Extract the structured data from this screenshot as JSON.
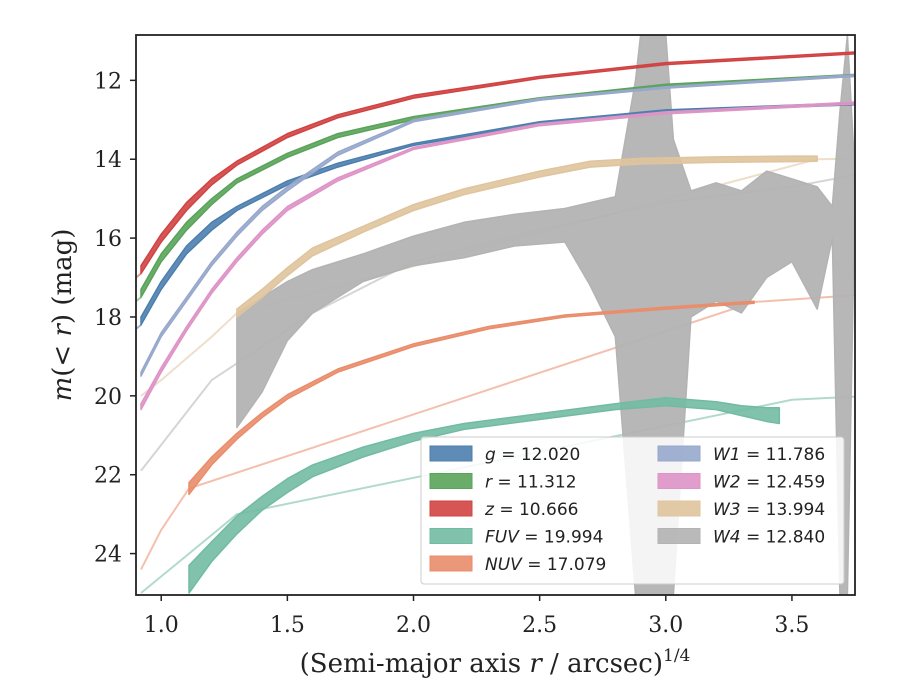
{
  "chart_data": {
    "type": "area",
    "xlabel_main": "(Semi-major axis ",
    "xlabel_var": "r",
    "xlabel_unit": " / arcsec)",
    "xlabel_exp": "1/4",
    "ylabel_pre": "m(< ",
    "ylabel_var": "r",
    "ylabel_post": ") (mag)",
    "xlim": [
      0.9,
      3.75
    ],
    "ylim": [
      25.05,
      10.85
    ],
    "y_inverted": true,
    "grid": false,
    "legend_position": "lower-right",
    "xticks": [
      1.0,
      1.5,
      2.0,
      2.5,
      3.0,
      3.5
    ],
    "xtick_labels": [
      "1.0",
      "1.5",
      "2.0",
      "2.5",
      "3.0",
      "3.5"
    ],
    "yticks": [
      12,
      14,
      16,
      18,
      20,
      22,
      24
    ],
    "ytick_labels": [
      "12",
      "14",
      "16",
      "18",
      "20",
      "22",
      "24"
    ],
    "series": [
      {
        "name": "g = 12.020",
        "name_var": "g",
        "name_val": " = 12.020",
        "color": "#4c7fae",
        "legend_col": 0,
        "band": [
          [
            0.92,
            18.2,
            18.0
          ],
          [
            1.0,
            17.3,
            17.1
          ],
          [
            1.1,
            16.4,
            16.2
          ],
          [
            1.2,
            15.8,
            15.6
          ],
          [
            1.3,
            15.3,
            15.2
          ],
          [
            1.5,
            14.65,
            14.55
          ],
          [
            1.7,
            14.2,
            14.1
          ],
          [
            2.0,
            13.65,
            13.6
          ],
          [
            2.5,
            13.1,
            13.05
          ],
          [
            3.0,
            12.8,
            12.75
          ],
          [
            3.75,
            12.62,
            12.57
          ]
        ],
        "tail": [
          [
            0.92,
            18.2
          ],
          [
            0.9,
            18.3
          ]
        ]
      },
      {
        "name": "r = 11.312",
        "name_var": "r",
        "name_val": " = 11.312",
        "color": "#5aa35a",
        "legend_col": 0,
        "band": [
          [
            0.92,
            17.5,
            17.3
          ],
          [
            1.0,
            16.6,
            16.4
          ],
          [
            1.1,
            15.8,
            15.6
          ],
          [
            1.2,
            15.15,
            15.0
          ],
          [
            1.3,
            14.6,
            14.5
          ],
          [
            1.5,
            13.95,
            13.85
          ],
          [
            1.7,
            13.45,
            13.35
          ],
          [
            2.0,
            13.0,
            12.92
          ],
          [
            2.5,
            12.5,
            12.44
          ],
          [
            3.0,
            12.15,
            12.1
          ],
          [
            3.75,
            11.9,
            11.85
          ]
        ],
        "tail": [
          [
            0.92,
            17.5
          ],
          [
            0.9,
            17.6
          ]
        ]
      },
      {
        "name": "z = 10.666",
        "name_var": "z",
        "name_val": " = 10.666",
        "color": "#d14343",
        "legend_col": 0,
        "band": [
          [
            0.92,
            16.9,
            16.7
          ],
          [
            1.0,
            16.1,
            15.9
          ],
          [
            1.1,
            15.3,
            15.1
          ],
          [
            1.2,
            14.65,
            14.5
          ],
          [
            1.3,
            14.15,
            14.05
          ],
          [
            1.5,
            13.45,
            13.35
          ],
          [
            1.7,
            12.95,
            12.87
          ],
          [
            2.0,
            12.45,
            12.38
          ],
          [
            2.5,
            11.95,
            11.9
          ],
          [
            3.0,
            11.6,
            11.55
          ],
          [
            3.75,
            11.33,
            11.28
          ]
        ],
        "tail": [
          [
            0.92,
            16.9
          ],
          [
            0.9,
            17.0
          ]
        ]
      },
      {
        "name": "FUV = 19.994",
        "name_var": "FUV",
        "name_val": " = 19.994",
        "color": "#72bba3",
        "legend_col": 0,
        "band": [
          [
            1.11,
            25.0,
            24.3
          ],
          [
            1.2,
            24.2,
            23.7
          ],
          [
            1.3,
            23.5,
            23.05
          ],
          [
            1.4,
            22.9,
            22.55
          ],
          [
            1.5,
            22.45,
            22.1
          ],
          [
            1.6,
            22.05,
            21.75
          ],
          [
            1.8,
            21.55,
            21.3
          ],
          [
            2.0,
            21.15,
            20.95
          ],
          [
            2.2,
            20.85,
            20.7
          ],
          [
            2.5,
            20.6,
            20.45
          ],
          [
            2.8,
            20.35,
            20.2
          ],
          [
            3.0,
            20.25,
            20.05
          ],
          [
            3.2,
            20.35,
            20.15
          ],
          [
            3.3,
            20.5,
            20.25
          ],
          [
            3.4,
            20.65,
            20.3
          ],
          [
            3.45,
            20.7,
            20.3
          ]
        ],
        "tail": [
          [
            0.92,
            25.0
          ],
          [
            1.11,
            24.0
          ],
          [
            1.3,
            23.0
          ],
          [
            3.5,
            20.1
          ],
          [
            3.75,
            20.02
          ]
        ]
      },
      {
        "name": "NUV = 17.079",
        "name_var": "NUV",
        "name_val": " = 17.079",
        "color": "#e98d6b",
        "legend_col": 0,
        "band": [
          [
            1.11,
            22.5,
            22.2
          ],
          [
            1.2,
            21.75,
            21.55
          ],
          [
            1.3,
            21.1,
            20.95
          ],
          [
            1.4,
            20.55,
            20.43
          ],
          [
            1.5,
            20.08,
            19.97
          ],
          [
            1.7,
            19.4,
            19.32
          ],
          [
            2.0,
            18.75,
            18.68
          ],
          [
            2.3,
            18.3,
            18.24
          ],
          [
            2.6,
            18.0,
            17.95
          ],
          [
            3.0,
            17.8,
            17.75
          ],
          [
            3.35,
            17.65,
            17.6
          ]
        ],
        "tail": [
          [
            0.92,
            24.4
          ],
          [
            1.0,
            23.4
          ],
          [
            1.11,
            22.35
          ],
          [
            3.35,
            17.62
          ],
          [
            3.75,
            17.45
          ]
        ]
      },
      {
        "name": "W1 = 11.786",
        "name_var": "W1",
        "name_val": " = 11.786",
        "color": "#97a8cc",
        "legend_col": 1,
        "band": [
          [
            0.92,
            19.5,
            19.4
          ],
          [
            1.0,
            18.5,
            18.4
          ],
          [
            1.1,
            17.6,
            17.5
          ],
          [
            1.2,
            16.7,
            16.6
          ],
          [
            1.3,
            15.95,
            15.85
          ],
          [
            1.4,
            15.3,
            15.2
          ],
          [
            1.5,
            14.8,
            14.7
          ],
          [
            1.7,
            13.9,
            13.82
          ],
          [
            2.0,
            13.05,
            13.0
          ],
          [
            2.5,
            12.5,
            12.46
          ],
          [
            3.0,
            12.2,
            12.16
          ],
          [
            3.75,
            11.9,
            11.86
          ]
        ],
        "tail": []
      },
      {
        "name": "W2 = 12.459",
        "name_var": "W2",
        "name_val": " = 12.459",
        "color": "#de94c6",
        "legend_col": 1,
        "band": [
          [
            0.92,
            20.35,
            20.2
          ],
          [
            1.0,
            19.4,
            19.28
          ],
          [
            1.1,
            18.35,
            18.25
          ],
          [
            1.2,
            17.4,
            17.3
          ],
          [
            1.3,
            16.6,
            16.5
          ],
          [
            1.4,
            15.9,
            15.8
          ],
          [
            1.5,
            15.3,
            15.2
          ],
          [
            1.7,
            14.55,
            14.47
          ],
          [
            2.0,
            13.75,
            13.7
          ],
          [
            2.5,
            13.15,
            13.1
          ],
          [
            3.0,
            12.85,
            12.8
          ],
          [
            3.75,
            12.6,
            12.55
          ]
        ],
        "tail": []
      },
      {
        "name": "W3 = 13.994",
        "name_var": "W3",
        "name_val": " = 13.994",
        "color": "#dfc49d",
        "legend_col": 1,
        "band": [
          [
            1.3,
            18.0,
            17.8
          ],
          [
            1.4,
            17.5,
            17.3
          ],
          [
            1.5,
            16.95,
            16.75
          ],
          [
            1.6,
            16.45,
            16.25
          ],
          [
            1.8,
            15.85,
            15.7
          ],
          [
            2.0,
            15.3,
            15.15
          ],
          [
            2.2,
            14.9,
            14.75
          ],
          [
            2.5,
            14.45,
            14.3
          ],
          [
            2.7,
            14.2,
            14.05
          ],
          [
            2.9,
            14.12,
            13.98
          ],
          [
            3.2,
            14.08,
            13.94
          ],
          [
            3.5,
            14.06,
            13.92
          ],
          [
            3.6,
            14.05,
            13.92
          ]
        ],
        "tail": [
          [
            0.92,
            20.0
          ],
          [
            1.0,
            19.6
          ],
          [
            1.2,
            18.5
          ],
          [
            1.3,
            17.9
          ],
          [
            3.6,
            14.0
          ],
          [
            3.75,
            13.99
          ]
        ]
      },
      {
        "name": "W4 = 12.840",
        "name_var": "W4",
        "name_val": " = 12.840",
        "color": "#b3b3b3",
        "legend_col": 1,
        "band": [
          [
            1.3,
            20.8,
            17.9
          ],
          [
            1.4,
            19.9,
            17.5
          ],
          [
            1.5,
            18.6,
            17.1
          ],
          [
            1.6,
            17.9,
            16.8
          ],
          [
            1.8,
            17.1,
            16.4
          ],
          [
            2.0,
            16.7,
            15.95
          ],
          [
            2.2,
            16.5,
            15.6
          ],
          [
            2.4,
            16.2,
            15.4
          ],
          [
            2.6,
            16.1,
            15.25
          ],
          [
            2.7,
            17.2,
            15.1
          ],
          [
            2.8,
            18.5,
            14.95
          ],
          [
            2.88,
            25.05,
            12.0
          ],
          [
            2.9,
            25.05,
            10.85
          ],
          [
            3.0,
            25.05,
            10.85
          ],
          [
            3.03,
            25.05,
            13.5
          ],
          [
            3.1,
            18.0,
            14.8
          ],
          [
            3.2,
            17.6,
            14.6
          ],
          [
            3.3,
            17.9,
            14.8
          ],
          [
            3.4,
            17.0,
            14.3
          ],
          [
            3.5,
            16.6,
            14.5
          ],
          [
            3.6,
            17.8,
            14.7
          ],
          [
            3.66,
            16.0,
            15.2
          ],
          [
            3.69,
            25.05,
            12.8
          ],
          [
            3.72,
            25.05,
            10.85
          ],
          [
            3.75,
            15.0,
            14.4
          ]
        ],
        "tail": [
          [
            0.92,
            21.9
          ],
          [
            1.2,
            19.6
          ],
          [
            1.6,
            17.9
          ],
          [
            2.0,
            16.6
          ],
          [
            2.5,
            15.8
          ],
          [
            3.0,
            15.1
          ],
          [
            3.5,
            14.7
          ],
          [
            3.75,
            14.4
          ]
        ]
      }
    ]
  }
}
